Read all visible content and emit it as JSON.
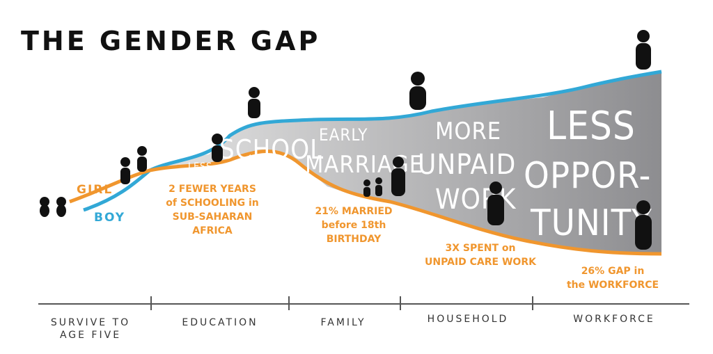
{
  "title": "THE GENDER GAP",
  "lines": {
    "girl": "GIRL",
    "boy": "BOY"
  },
  "gap_labels": [
    [
      "LESS",
      "SCHOOL"
    ],
    [
      "EARLY",
      "MARRIAGE"
    ],
    [
      "MORE",
      "UNPAID",
      "WORK"
    ],
    [
      "LESS",
      "OPPOR-",
      "TUNITY"
    ]
  ],
  "annotations": [
    [
      "2 FEWER YEARS",
      "of SCHOOLING in",
      "SUB-SAHARAN",
      "AFRICA"
    ],
    [
      "21% MARRIED",
      "before 18th",
      "BIRTHDAY"
    ],
    [
      "3X SPENT on",
      "UNPAID CARE WORK"
    ],
    [
      "26% GAP in",
      "the WORKFORCE"
    ]
  ],
  "stages": [
    [
      "SURVIVE TO",
      "AGE FIVE"
    ],
    [
      "EDUCATION"
    ],
    [
      "FAMILY"
    ],
    [
      "HOUSEHOLD"
    ],
    [
      "WORKFORCE"
    ]
  ]
}
